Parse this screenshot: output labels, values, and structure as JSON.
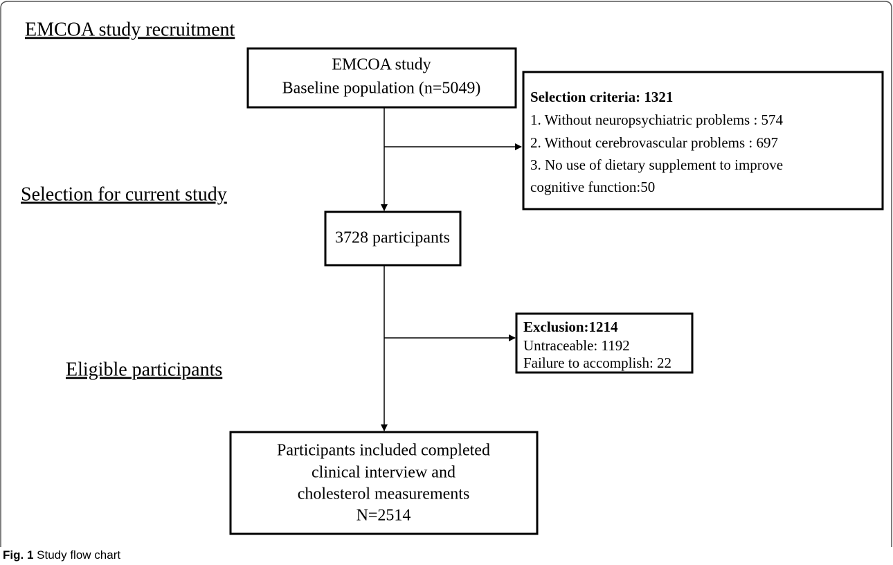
{
  "stages": [
    "EMCOA study recruitment",
    "Selection for current study",
    "Eligible participants"
  ],
  "nodes": [
    {
      "lines": [
        "EMCOA study",
        "Baseline population (n=5049)"
      ]
    },
    {
      "lines": [
        "3728 participants"
      ]
    },
    {
      "lines": [
        "Participants included completed",
        "clinical interview and",
        "cholesterol measurements",
        "N=2514"
      ]
    }
  ],
  "side_boxes": [
    {
      "title": "Selection criteria:  1321",
      "lines": [
        "1. Without neuropsychiatric  problems : 574",
        "2. Without cerebrovascular problems : 697",
        "3. No use of dietary supplement to improve",
        "cognitive function:50"
      ]
    },
    {
      "title": "Exclusion:1214",
      "lines": [
        "Untraceable:  1192",
        "Failure to accomplish:  22"
      ]
    }
  ],
  "caption": {
    "label": "Fig. 1",
    "text": "Study flow chart"
  }
}
